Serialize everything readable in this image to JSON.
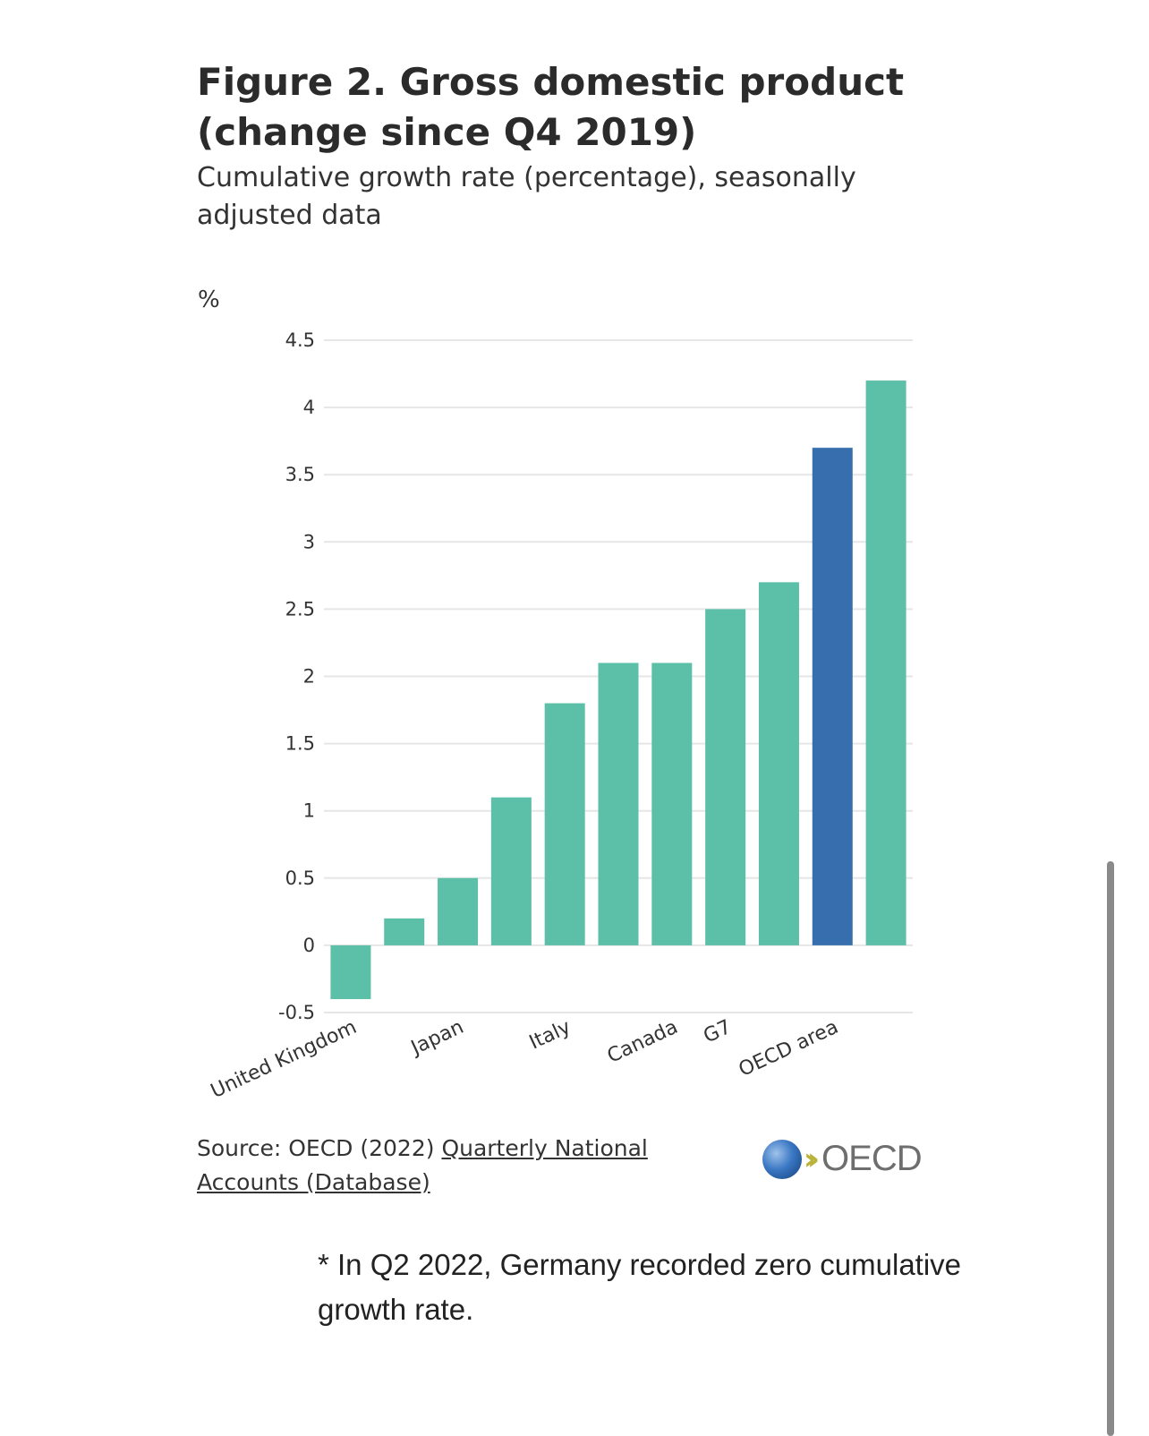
{
  "chart_data": {
    "type": "bar",
    "title": "Figure 2. Gross domestic product (change since Q4 2019)",
    "subtitle": "Cumulative growth rate (percentage), seasonally adjusted data",
    "ylabel": "%",
    "xlabel": "",
    "ylim": [
      -0.5,
      4.5
    ],
    "yticks": [
      "4.5",
      "4",
      "3.5",
      "3",
      "2.5",
      "2",
      "1.5",
      "1",
      "0.5",
      "0",
      "-0.5"
    ],
    "categories": [
      "United Kingdom",
      "",
      "Japan",
      "",
      "Italy",
      "",
      "Canada",
      "G7",
      "",
      "OECD area",
      ""
    ],
    "values": [
      -0.4,
      0.2,
      0.5,
      1.1,
      1.8,
      2.1,
      2.1,
      2.5,
      2.7,
      3.7,
      4.2
    ],
    "bar_colors": [
      "#5cbfa8",
      "#5cbfa8",
      "#5cbfa8",
      "#5cbfa8",
      "#5cbfa8",
      "#5cbfa8",
      "#5cbfa8",
      "#5cbfa8",
      "#5cbfa8",
      "#376fae",
      "#5cbfa8"
    ],
    "grid": true,
    "legend": "none"
  },
  "source": {
    "prefix": "Source: OECD (2022) ",
    "link_text": "Quarterly National Accounts (Database)"
  },
  "logo": {
    "word": "OECD"
  },
  "footnote": "* In Q2 2022, Germany recorded zero cumulative growth rate."
}
